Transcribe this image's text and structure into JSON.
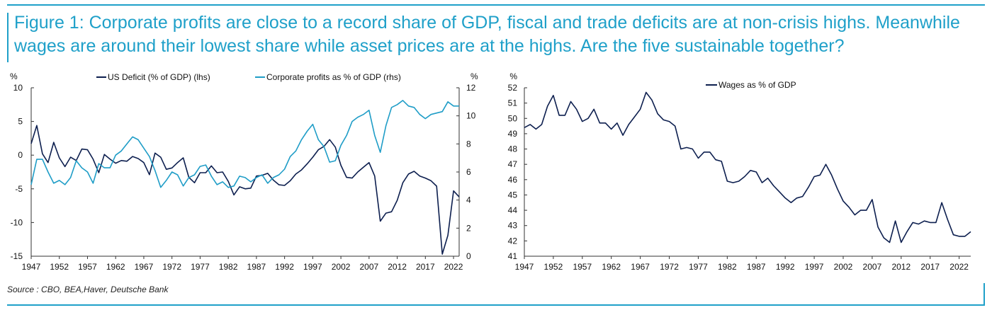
{
  "title_line1": "Figure 1: Corporate profits are close to a record share of GDP, fiscal and trade deficits are at non-crisis highs. Meanwhile",
  "title_line2": "wages are around their lowest share while asset prices are at the highs. Are the five sustainable together?",
  "source": "Source : CBO, BEA,Haver, Deutsche Bank",
  "colors": {
    "accent": "#1fa0c9",
    "dark_series": "#0d1f4f",
    "light_series": "#1f9dc7"
  },
  "chart_data": [
    {
      "type": "line",
      "y_unit_left": "%",
      "y_unit_right": "%",
      "ylim_left": [
        -15,
        10
      ],
      "yticks_left": [
        10,
        5,
        0,
        -5,
        -10,
        -15
      ],
      "ylim_right": [
        0,
        12
      ],
      "yticks_right": [
        12,
        10,
        8,
        6,
        4,
        2,
        0
      ],
      "xlim": [
        1947,
        2023
      ],
      "xticks": [
        1947,
        1952,
        1957,
        1962,
        1967,
        1972,
        1977,
        1982,
        1987,
        1992,
        1997,
        2002,
        2007,
        2012,
        2017,
        2022
      ],
      "legend_position": "top",
      "grid": false,
      "series": [
        {
          "name": "US Deficit (% of GDP) (lhs)",
          "axis": "left",
          "color": "#0d1f4f",
          "x": [
            1947,
            1948,
            1949,
            1950,
            1951,
            1952,
            1953,
            1954,
            1955,
            1956,
            1957,
            1958,
            1959,
            1960,
            1961,
            1962,
            1963,
            1964,
            1965,
            1966,
            1967,
            1968,
            1969,
            1970,
            1971,
            1972,
            1973,
            1974,
            1975,
            1976,
            1977,
            1978,
            1979,
            1980,
            1981,
            1982,
            1983,
            1984,
            1985,
            1986,
            1987,
            1988,
            1989,
            1990,
            1991,
            1992,
            1993,
            1994,
            1995,
            1996,
            1997,
            1998,
            1999,
            2000,
            2001,
            2002,
            2003,
            2004,
            2005,
            2006,
            2007,
            2008,
            2009,
            2010,
            2011,
            2012,
            2013,
            2014,
            2015,
            2016,
            2017,
            2018,
            2019,
            2020,
            2021,
            2022,
            2023
          ],
          "values": [
            1.7,
            4.4,
            0.2,
            -1.1,
            1.9,
            -0.4,
            -1.7,
            -0.3,
            -0.8,
            0.9,
            0.8,
            -0.6,
            -2.6,
            0.1,
            -0.6,
            -1.2,
            -0.8,
            -0.9,
            -0.2,
            -0.5,
            -1.1,
            -2.9,
            0.3,
            -0.3,
            -2.1,
            -1.9,
            -1.1,
            -0.4,
            -3.3,
            -4.1,
            -2.6,
            -2.6,
            -1.6,
            -2.6,
            -2.5,
            -3.9,
            -5.9,
            -4.7,
            -5.0,
            -4.9,
            -3.1,
            -3.0,
            -2.7,
            -3.7,
            -4.4,
            -4.5,
            -3.8,
            -2.8,
            -2.2,
            -1.3,
            -0.3,
            0.8,
            1.3,
            2.3,
            1.2,
            -1.5,
            -3.3,
            -3.4,
            -2.5,
            -1.8,
            -1.1,
            -3.1,
            -9.8,
            -8.6,
            -8.4,
            -6.7,
            -4.1,
            -2.8,
            -2.4,
            -3.1,
            -3.4,
            -3.8,
            -4.6,
            -14.7,
            -11.9,
            -5.3,
            -6.2
          ]
        },
        {
          "name": "Corporate profits as % of GDP (rhs)",
          "axis": "right",
          "color": "#1f9dc7",
          "x": [
            1947,
            1948,
            1949,
            1950,
            1951,
            1952,
            1953,
            1954,
            1955,
            1956,
            1957,
            1958,
            1959,
            1960,
            1961,
            1962,
            1963,
            1964,
            1965,
            1966,
            1967,
            1968,
            1969,
            1970,
            1971,
            1972,
            1973,
            1974,
            1975,
            1976,
            1977,
            1978,
            1979,
            1980,
            1981,
            1982,
            1983,
            1984,
            1985,
            1986,
            1987,
            1988,
            1989,
            1990,
            1991,
            1992,
            1993,
            1994,
            1995,
            1996,
            1997,
            1998,
            1999,
            2000,
            2001,
            2002,
            2003,
            2004,
            2005,
            2006,
            2007,
            2008,
            2009,
            2010,
            2011,
            2012,
            2013,
            2014,
            2015,
            2016,
            2017,
            2018,
            2019,
            2020,
            2021,
            2022,
            2023
          ],
          "values": [
            5.1,
            6.9,
            6.9,
            6.0,
            5.2,
            5.4,
            5.1,
            5.6,
            6.8,
            6.3,
            6.0,
            5.2,
            6.6,
            6.3,
            6.3,
            7.2,
            7.5,
            8.0,
            8.5,
            8.3,
            7.7,
            7.1,
            6.1,
            4.9,
            5.4,
            6.0,
            5.8,
            5.0,
            5.6,
            5.8,
            6.4,
            6.5,
            5.7,
            5.1,
            5.3,
            4.9,
            5.0,
            5.7,
            5.6,
            5.3,
            5.6,
            5.8,
            5.2,
            5.6,
            5.8,
            6.2,
            7.1,
            7.5,
            8.3,
            8.9,
            9.4,
            8.3,
            7.8,
            6.7,
            6.8,
            7.9,
            8.6,
            9.6,
            9.9,
            10.1,
            10.4,
            8.6,
            7.4,
            9.3,
            10.6,
            10.8,
            11.1,
            10.7,
            10.6,
            10.1,
            9.8,
            10.1,
            10.2,
            10.3,
            11.0,
            10.7,
            10.7
          ]
        }
      ]
    },
    {
      "type": "line",
      "y_unit": "%",
      "ylim": [
        41,
        52
      ],
      "yticks": [
        52,
        51,
        50,
        49,
        48,
        47,
        46,
        45,
        44,
        43,
        42,
        41
      ],
      "xlim": [
        1947,
        2024
      ],
      "xticks": [
        1947,
        1952,
        1957,
        1962,
        1967,
        1972,
        1977,
        1982,
        1987,
        1992,
        1997,
        2002,
        2007,
        2012,
        2017,
        2022
      ],
      "legend_position": "top-right",
      "grid": false,
      "series": [
        {
          "name": "Wages as % of GDP",
          "color": "#0d1f4f",
          "x": [
            1947,
            1948,
            1949,
            1950,
            1951,
            1952,
            1953,
            1954,
            1955,
            1956,
            1957,
            1958,
            1959,
            1960,
            1961,
            1962,
            1963,
            1964,
            1965,
            1966,
            1967,
            1968,
            1969,
            1970,
            1971,
            1972,
            1973,
            1974,
            1975,
            1976,
            1977,
            1978,
            1979,
            1980,
            1981,
            1982,
            1983,
            1984,
            1985,
            1986,
            1987,
            1988,
            1989,
            1990,
            1991,
            1992,
            1993,
            1994,
            1995,
            1996,
            1997,
            1998,
            1999,
            2000,
            2001,
            2002,
            2003,
            2004,
            2005,
            2006,
            2007,
            2008,
            2009,
            2010,
            2011,
            2012,
            2013,
            2014,
            2015,
            2016,
            2017,
            2018,
            2019,
            2020,
            2021,
            2022,
            2023,
            2024
          ],
          "values": [
            49.4,
            49.6,
            49.3,
            49.6,
            50.8,
            51.5,
            50.2,
            50.2,
            51.1,
            50.6,
            49.8,
            50.0,
            50.6,
            49.7,
            49.7,
            49.3,
            49.7,
            48.9,
            49.6,
            50.1,
            50.6,
            51.7,
            51.2,
            50.3,
            49.9,
            49.8,
            49.5,
            48.0,
            48.1,
            48.0,
            47.4,
            47.8,
            47.8,
            47.3,
            47.2,
            45.9,
            45.8,
            45.9,
            46.2,
            46.6,
            46.5,
            45.8,
            46.1,
            45.6,
            45.2,
            44.8,
            44.5,
            44.8,
            44.9,
            45.5,
            46.2,
            46.3,
            47.0,
            46.3,
            45.4,
            44.6,
            44.2,
            43.7,
            44.0,
            44.0,
            44.7,
            42.9,
            42.2,
            41.9,
            43.3,
            41.9,
            42.6,
            43.2,
            43.1,
            43.3,
            43.2,
            43.2,
            44.5,
            43.4,
            42.4,
            42.3,
            42.3,
            42.6
          ]
        }
      ]
    }
  ]
}
